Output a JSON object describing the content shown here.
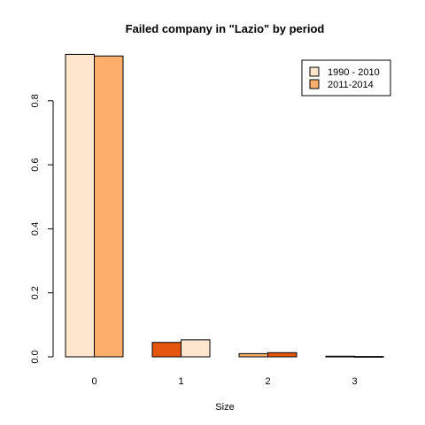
{
  "chart_data": {
    "type": "bar",
    "title": "Failed company in \"Lazio\" by period",
    "xlabel": "Size",
    "ylabel": "",
    "categories": [
      "0",
      "1",
      "2",
      "3"
    ],
    "yticks": [
      "0.0",
      "0.2",
      "0.4",
      "0.6",
      "0.8"
    ],
    "ylim": [
      0,
      0.96
    ],
    "grid": false,
    "legend_position": "top-right",
    "series": [
      {
        "name": "1990 - 2010",
        "legend_color": "#FEE6CE",
        "values": [
          0.945,
          0.045,
          0.01,
          0.002
        ]
      },
      {
        "name": "2011-2014",
        "legend_color": "#FDAE6B",
        "values": [
          0.94,
          0.053,
          0.013,
          0.001
        ]
      }
    ],
    "bar_colors": [
      [
        "#FEE6CE",
        "#FDAE6B"
      ],
      [
        "#E6550D",
        "#FEE6CE"
      ],
      [
        "#FDAE6B",
        "#E6550D"
      ],
      [
        "#FEE6CE",
        "#FDAE6B"
      ]
    ]
  }
}
